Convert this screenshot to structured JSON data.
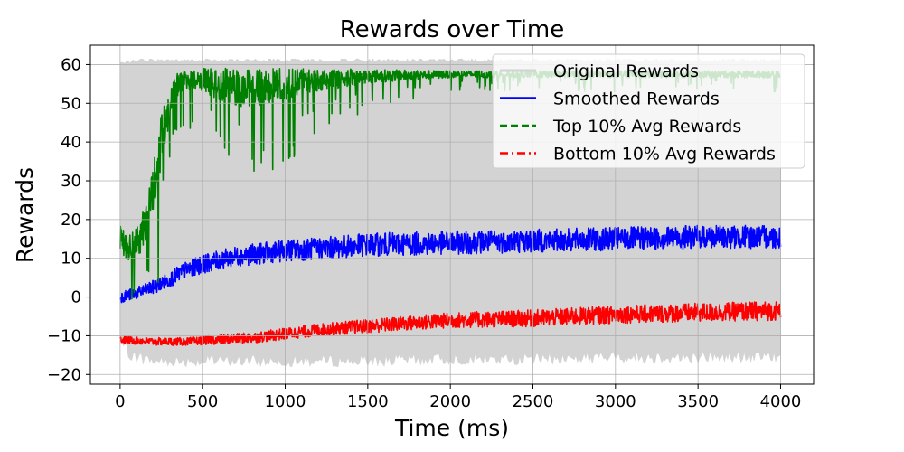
{
  "chart_data": {
    "type": "line",
    "title": "Rewards over Time",
    "xlabel": "Time (ms)",
    "ylabel": "Rewards",
    "xlim": [
      -180,
      4200
    ],
    "ylim": [
      -22.5,
      65
    ],
    "xticks": [
      0,
      500,
      1000,
      1500,
      2000,
      2500,
      3000,
      3500,
      4000
    ],
    "yticks": [
      -20,
      -10,
      0,
      10,
      20,
      30,
      40,
      50,
      60
    ],
    "xtick_labels": [
      "0",
      "500",
      "1000",
      "1500",
      "2000",
      "2500",
      "3000",
      "3500",
      "4000"
    ],
    "ytick_labels": [
      "−20",
      "−10",
      "0",
      "10",
      "20",
      "30",
      "40",
      "50",
      "60"
    ],
    "grid": true,
    "legend_position": "top-right",
    "series": [
      {
        "name": "Original Rewards",
        "style": "filled-band",
        "color": "#d3d3d3",
        "x": [
          0,
          50,
          100,
          150,
          200,
          300,
          500,
          800,
          1000,
          1500,
          2000,
          2500,
          3000,
          3500,
          4000
        ],
        "upper": [
          61,
          61,
          61.5,
          61.5,
          61.5,
          61.5,
          61.5,
          61.5,
          61.5,
          61.5,
          61.5,
          61.5,
          61.5,
          61.5,
          61.5
        ],
        "lower": [
          -13,
          -16,
          -17,
          -17.5,
          -18,
          -18,
          -18,
          -18,
          -18,
          -18,
          -17.5,
          -17.5,
          -17,
          -17,
          -17
        ]
      },
      {
        "name": "Smoothed Rewards",
        "style": "solid",
        "color": "#0000ff",
        "x": [
          0,
          100,
          200,
          300,
          400,
          500,
          600,
          700,
          800,
          1000,
          1200,
          1500,
          2000,
          2500,
          3000,
          3500,
          4000
        ],
        "y": [
          0,
          1,
          2.5,
          4.5,
          7,
          8.5,
          9.5,
          10.5,
          11,
          12,
          12.5,
          13.5,
          14,
          14.5,
          15,
          15.5,
          15.5
        ],
        "spread": [
          1.5,
          1.5,
          1.8,
          2,
          2.2,
          2.4,
          2.5,
          2.6,
          2.7,
          2.8,
          2.9,
          3,
          3,
          3,
          3,
          3,
          3
        ]
      },
      {
        "name": "Top 10% Avg Rewards",
        "style": "dashed",
        "color": "#008000",
        "x": [
          0,
          50,
          100,
          150,
          200,
          250,
          300,
          350,
          400,
          500,
          600,
          700,
          800,
          1000,
          1200,
          1500,
          2000,
          2500,
          3000,
          3500,
          4000
        ],
        "y": [
          16,
          12,
          14,
          18,
          28,
          40,
          50,
          55,
          56,
          56,
          55,
          54,
          54,
          55,
          56,
          57,
          57.5,
          57.5,
          57.5,
          57.5,
          57.5
        ],
        "spread": [
          6,
          6,
          7,
          9,
          12,
          12,
          8,
          5,
          4,
          5,
          7,
          8,
          8,
          7,
          5,
          3,
          1.5,
          1.5,
          1.5,
          1.5,
          1.5
        ]
      },
      {
        "name": "Bottom 10% Avg Rewards",
        "style": "dashdot",
        "color": "#ff0000",
        "x": [
          0,
          200,
          400,
          600,
          800,
          1000,
          1200,
          1500,
          2000,
          2500,
          3000,
          3500,
          4000
        ],
        "y": [
          -11,
          -11.5,
          -11.5,
          -11,
          -10.5,
          -9.5,
          -8.5,
          -7.5,
          -6,
          -5.5,
          -4.5,
          -4,
          -3.5
        ],
        "spread": [
          1,
          1,
          1,
          1.2,
          1.4,
          1.5,
          1.6,
          1.8,
          2,
          2.2,
          2.3,
          2.4,
          2.5
        ]
      }
    ]
  }
}
